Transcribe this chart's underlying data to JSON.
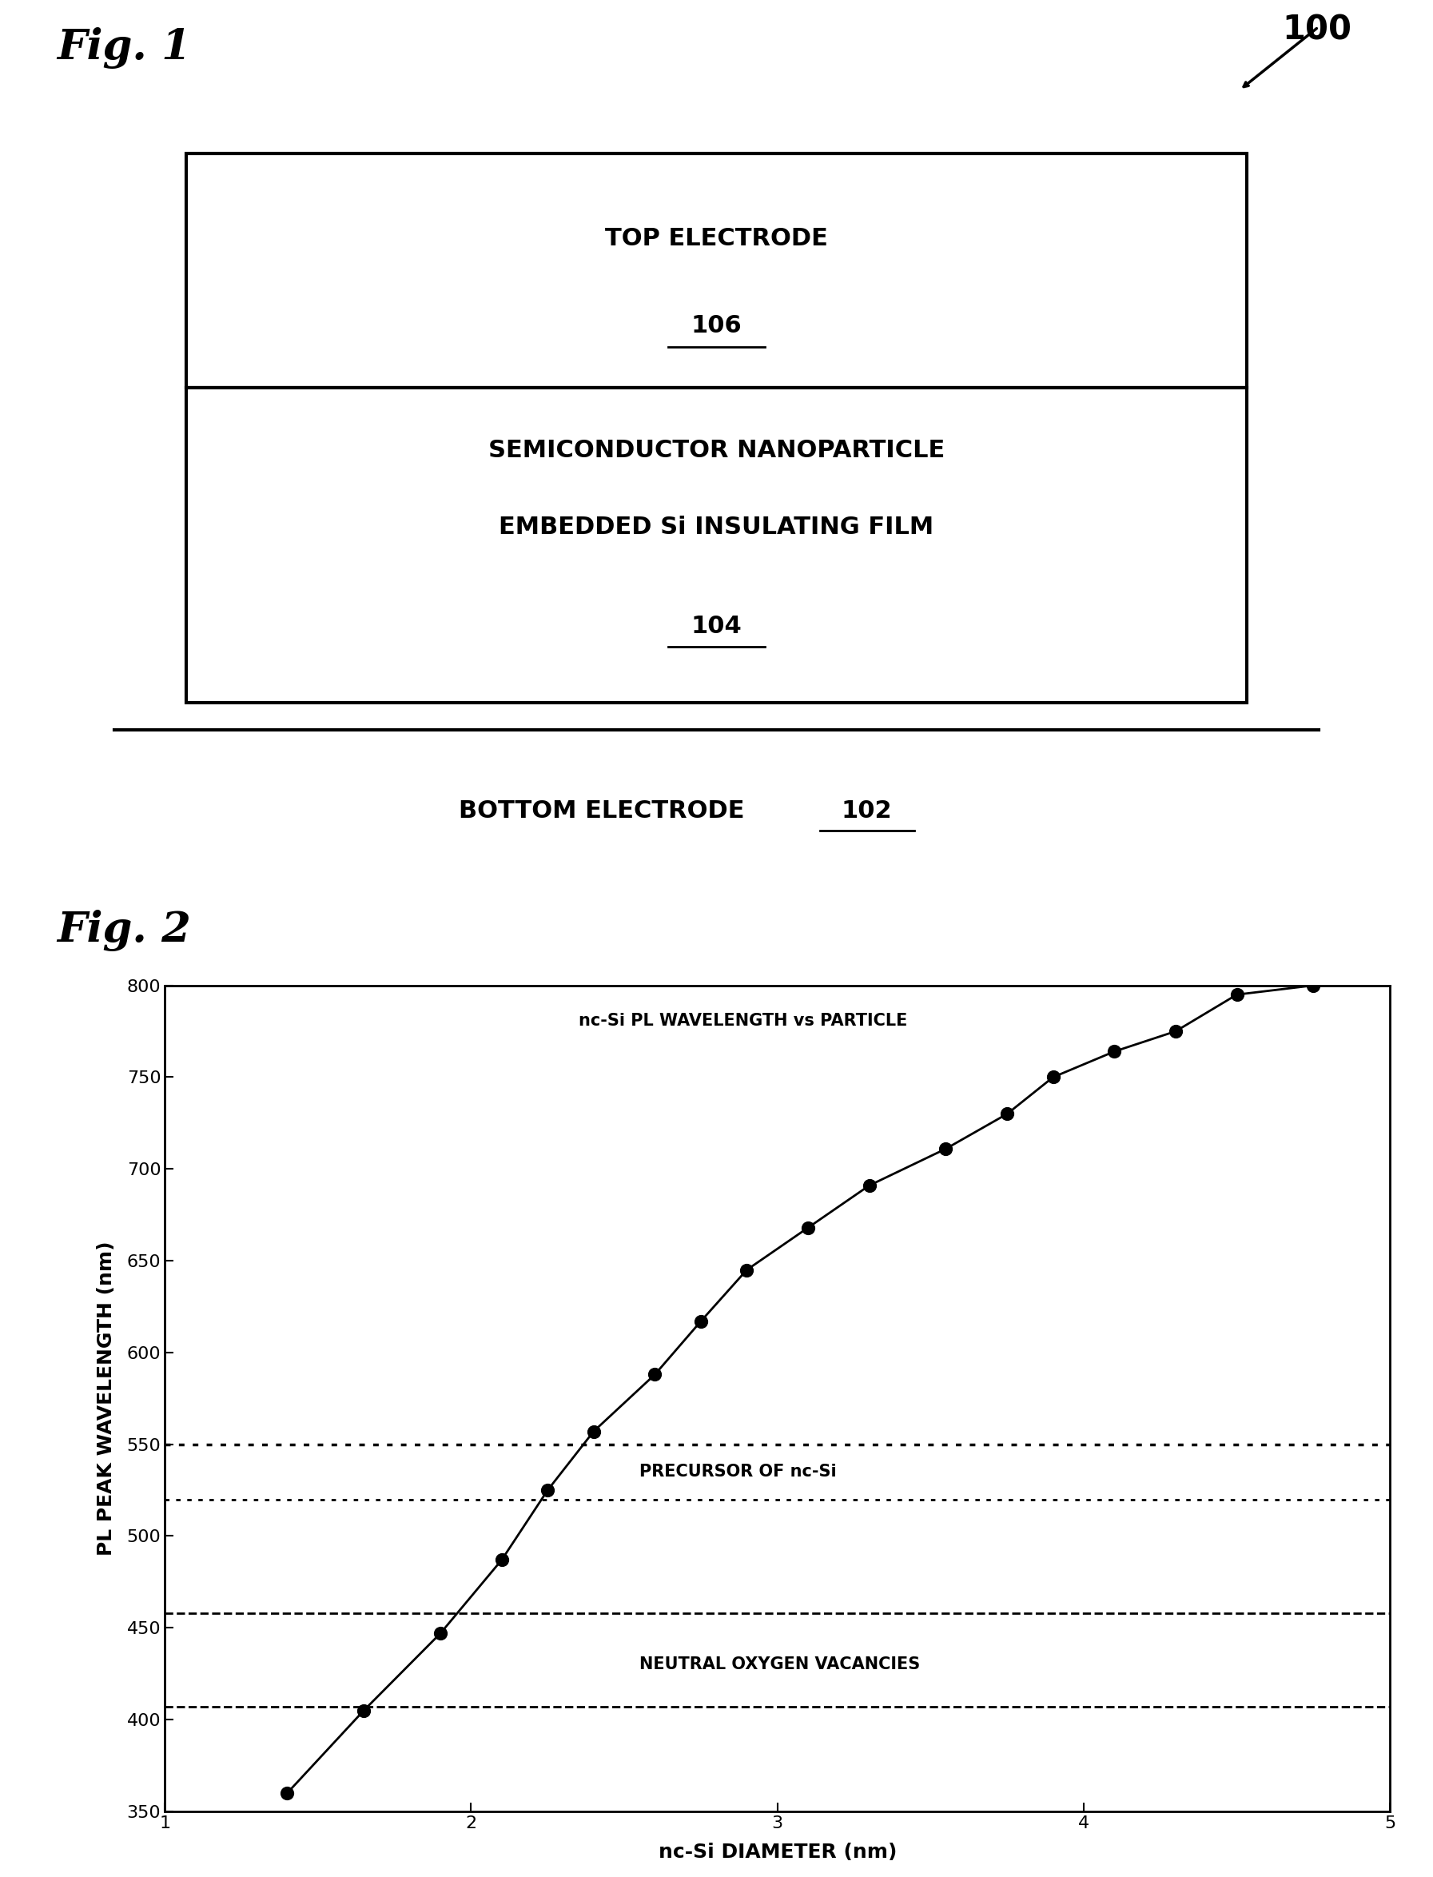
{
  "fig1_title": "Fig. 1",
  "fig2_title": "Fig. 2",
  "label_100": "100",
  "top_electrode_text1": "TOP ELECTRODE",
  "top_electrode_text2": "106",
  "semi_text1": "SEMICONDUCTOR NANOPARTICLE",
  "semi_text2": "EMBEDDED Si INSULATING FILM",
  "semi_text3": "104",
  "bottom_electrode_text": "BOTTOM ELECTRODE",
  "bottom_electrode_num": "102",
  "plot_title": "nc-Si PL WAVELENGTH vs PARTICLE",
  "xlabel": "nc-Si DIAMETER (nm)",
  "ylabel": "PL PEAK WAVELENGTH (nm)",
  "xlim": [
    1,
    5
  ],
  "ylim": [
    350,
    800
  ],
  "xticks": [
    1,
    2,
    3,
    4,
    5
  ],
  "yticks": [
    350,
    400,
    450,
    500,
    550,
    600,
    650,
    700,
    750,
    800
  ],
  "data_x": [
    1.4,
    1.65,
    1.9,
    2.1,
    2.25,
    2.4,
    2.6,
    2.75,
    2.9,
    3.1,
    3.3,
    3.55,
    3.75,
    3.9,
    4.1,
    4.3,
    4.5,
    4.75
  ],
  "data_y": [
    360,
    405,
    447,
    487,
    525,
    557,
    588,
    617,
    645,
    668,
    691,
    711,
    730,
    750,
    764,
    775,
    795,
    800
  ],
  "hline_dotted1": 550,
  "hline_dotted2": 520,
  "hline_dashed1": 458,
  "hline_dashed2": 407,
  "label_precursor": "PRECURSOR OF nc-Si",
  "label_neutral": "NEUTRAL OXYGEN VACANCIES",
  "background_color": "#ffffff",
  "line_color": "#000000",
  "marker_color": "#000000"
}
